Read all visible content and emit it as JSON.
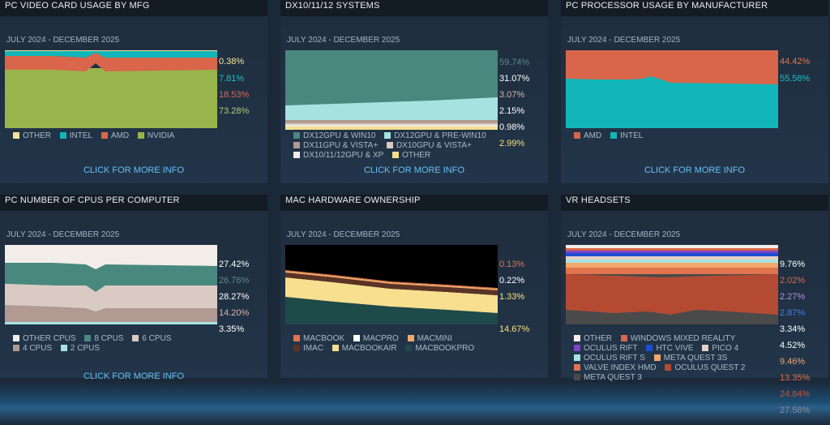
{
  "cards": [
    {
      "title": "PC VIDEO CARD USAGE BY MFG",
      "date": "JULY 2024 - DECEMBER 2025",
      "more": "CLICK FOR MORE INFO",
      "pcts": [
        {
          "text": "0.38%",
          "color": "#f6e79a"
        },
        {
          "text": "7.81%",
          "color": "#17c2c4"
        },
        {
          "text": "18.53%",
          "color": "#d9664a"
        },
        {
          "text": "73.28%",
          "color": "#b6cb78"
        }
      ],
      "legend": [
        {
          "label": "OTHER",
          "color": "#f7e29b"
        },
        {
          "label": "INTEL",
          "color": "#12b6b8"
        },
        {
          "label": "AMD",
          "color": "#d9664a"
        },
        {
          "label": "NVIDIA",
          "color": "#98b54c"
        }
      ]
    },
    {
      "title": "DX10/11/12 SYSTEMS",
      "date": "JULY 2024 - DECEMBER 2025",
      "more": "CLICK FOR MORE INFO",
      "pcts": [
        {
          "text": "59.74%",
          "color": "#5c8a85"
        },
        {
          "text": "31.07%",
          "color": "#ffffff"
        },
        {
          "text": "3.07%",
          "color": "#d7b6aa"
        },
        {
          "text": "2.15%",
          "color": "#ffffff"
        },
        {
          "text": "0.98%",
          "color": "#ffffff"
        },
        {
          "text": "2.99%",
          "color": "#f6e177"
        }
      ],
      "legend": [
        {
          "label": "DX12GPU & WIN10",
          "color": "#49887f"
        },
        {
          "label": "DX12GPU & PRE-WIN10",
          "color": "#a6e3e0"
        },
        {
          "label": "DX11GPU & VISTA+",
          "color": "#b09a92"
        },
        {
          "label": "DX10GPU & VISTA+",
          "color": "#d9cbc4"
        },
        {
          "label": "DX10/11/12GPU & XP",
          "color": "#f2ede8"
        },
        {
          "label": "OTHER",
          "color": "#f7df8f"
        }
      ]
    },
    {
      "title": "PC PROCESSOR USAGE BY MANUFACTURER",
      "date": "JULY 2024 - DECEMBER 2025",
      "more": "CLICK FOR MORE INFO",
      "pcts": [
        {
          "text": "44.42%",
          "color": "#e0744f"
        },
        {
          "text": "55.58%",
          "color": "#17c2c4"
        }
      ],
      "legend": [
        {
          "label": "AMD",
          "color": "#d9664a"
        },
        {
          "label": "INTEL",
          "color": "#12b6b8"
        }
      ]
    },
    {
      "title": "PC NUMBER OF CPUS PER COMPUTER",
      "date": "JULY 2024 - DECEMBER 2025",
      "more": "CLICK FOR MORE INFO",
      "pcts": [
        {
          "text": "27.42%",
          "color": "#ffffff"
        },
        {
          "text": "26.76%",
          "color": "#5c8a85"
        },
        {
          "text": "28.27%",
          "color": "#ffffff"
        },
        {
          "text": "14.20%",
          "color": "#d7b6aa"
        },
        {
          "text": "3.35%",
          "color": "#ffffff"
        }
      ],
      "legend": [
        {
          "label": "OTHER CPUS",
          "color": "#f2ede8"
        },
        {
          "label": "8 CPUS",
          "color": "#49887f"
        },
        {
          "label": "6 CPUS",
          "color": "#d9cbc4"
        },
        {
          "label": "4 CPUS",
          "color": "#b09a92"
        },
        {
          "label": "2 CPUS",
          "color": "#a6e3e0"
        }
      ]
    },
    {
      "title": "MAC HARDWARE OWNERSHIP",
      "date": "JULY 2024 - DECEMBER 2025",
      "more": "",
      "pcts": [
        {
          "text": "0.13%",
          "color": "#e0744f"
        },
        {
          "text": "0.22%",
          "color": "#ffffff"
        },
        {
          "text": "1.33%",
          "color": "#f6e177"
        },
        {
          "text": "14.67%",
          "color": "#f6e177"
        }
      ],
      "legend": [
        {
          "label": "MACBOOK",
          "color": "#e0744f"
        },
        {
          "label": "MACPRO",
          "color": "#ffffff"
        },
        {
          "label": "MACMINI",
          "color": "#f2a86a"
        },
        {
          "label": "IMAC",
          "color": "#5b3326"
        },
        {
          "label": "MACBOOKAIR",
          "color": "#f7df8f"
        },
        {
          "label": "MACBOOKPRO",
          "color": "#1e4a4a"
        }
      ]
    },
    {
      "title": "VR HEADSETS",
      "date": "JULY 2024 - DECEMBER 2025",
      "more": "",
      "pcts": [
        {
          "text": "9.76%",
          "color": "#ffffff"
        },
        {
          "text": "2.02%",
          "color": "#d9664a"
        },
        {
          "text": "2.27%",
          "color": "#b58fe0"
        },
        {
          "text": "2.87%",
          "color": "#3f7fe6"
        },
        {
          "text": "3.34%",
          "color": "#ffffff"
        },
        {
          "text": "4.52%",
          "color": "#ffffff"
        },
        {
          "text": "9.46%",
          "color": "#f2a86a"
        },
        {
          "text": "13.35%",
          "color": "#e0744f"
        },
        {
          "text": "24.84%",
          "color": "#c0543f"
        },
        {
          "text": "27.58%",
          "color": "#8a8f96"
        }
      ],
      "legend": [
        {
          "label": "OTHER",
          "color": "#f2ede8"
        },
        {
          "label": "WINDOWS MIXED REALITY",
          "color": "#d9664a"
        },
        {
          "label": "OCULUS RIFT",
          "color": "#7b45c9"
        },
        {
          "label": "HTC VIVE",
          "color": "#1f4fd0"
        },
        {
          "label": "PICO 4",
          "color": "#e6cfc7"
        },
        {
          "label": "OCULUS RIFT S",
          "color": "#a6e3e0"
        },
        {
          "label": "META QUEST 3S",
          "color": "#f2a86a"
        },
        {
          "label": "VALVE INDEX HMD",
          "color": "#e0744f"
        },
        {
          "label": "OCULUS QUEST 2",
          "color": "#b54a33"
        },
        {
          "label": "META QUEST 3",
          "color": "#4a4a4a"
        }
      ]
    }
  ]
}
